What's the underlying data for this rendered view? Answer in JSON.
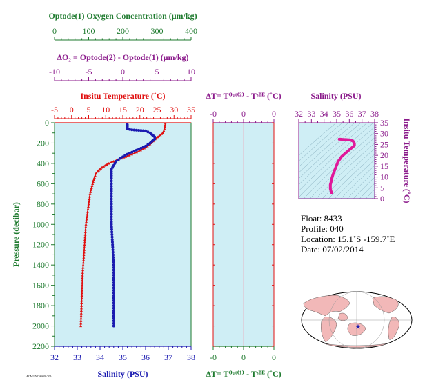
{
  "labels": {
    "oxygen_axis": "Optode(1) Oxygen Concentration (μm/kg)",
    "delta_o2_axis": "ΔO₂ = Optode(2) - Optode(1)    (μm/kg)",
    "temperature_axis": "Insitu Temperature (˚C)",
    "dt_top_axis": "ΔT= Tᴼᵖᵗ⁽²⁾ - Tˢᴮᴱ (˚C)",
    "salinity_inset_axis": "Salinity (PSU)",
    "pressure_axis": "Pressure (decibar)",
    "salinity_bottom_axis": "Salinity (PSU)",
    "dt_bottom_axis": "ΔT= Tᴼᵖᵗ⁽¹⁾ - Tˢᴮᴱ (˚C)",
    "inset_temp_axis": "Insitu Temperature (˚C)",
    "footer_code": "AOML/NOAA 08/2014"
  },
  "info": {
    "float": "Float:  8433",
    "profile": "Profile:  040",
    "location": "Location:  15.1˚S  -159.7˚E",
    "date": "Date:  07/02/2014"
  },
  "colors": {
    "panel_bg": "#cfeef5",
    "oxygen": "#1e7a2e",
    "delta_o2": "#8b1a8b",
    "temperature": "#e01010",
    "salinity": "#1a1ab0",
    "ts_curve": "#e0189a",
    "land": "#f2b8b8"
  },
  "chart_data": [
    {
      "type": "line",
      "name": "profile",
      "y_axis": {
        "label": "Pressure (decibar)",
        "range": [
          2200,
          0
        ],
        "ticks": [
          0,
          200,
          400,
          600,
          800,
          1000,
          1200,
          1400,
          1600,
          1800,
          2000,
          2200
        ]
      },
      "axes": {
        "oxygen": {
          "range": [
            0,
            400
          ],
          "ticks": [
            0,
            100,
            200,
            300,
            400
          ]
        },
        "delta_o2": {
          "range": [
            -10,
            10
          ],
          "ticks": [
            -10,
            -5,
            0,
            5,
            10
          ]
        },
        "temperature": {
          "range": [
            -5,
            35
          ],
          "ticks": [
            -5,
            0,
            5,
            10,
            15,
            20,
            25,
            30,
            35
          ]
        },
        "salinity": {
          "range": [
            32,
            38
          ],
          "ticks": [
            32,
            33,
            34,
            35,
            36,
            37,
            38
          ]
        }
      },
      "series": [
        {
          "axis": "temperature",
          "points": [
            [
              27.4,
              0
            ],
            [
              27.4,
              20
            ],
            [
              27.3,
              40
            ],
            [
              27.2,
              60
            ],
            [
              27.0,
              80
            ],
            [
              26.7,
              100
            ],
            [
              26.0,
              120
            ],
            [
              25.2,
              140
            ],
            [
              24.5,
              160
            ],
            [
              23.9,
              180
            ],
            [
              23.3,
              200
            ],
            [
              22.6,
              220
            ],
            [
              21.8,
              240
            ],
            [
              20.8,
              260
            ],
            [
              19.7,
              280
            ],
            [
              18.4,
              300
            ],
            [
              16.9,
              320
            ],
            [
              15.3,
              340
            ],
            [
              13.8,
              360
            ],
            [
              12.3,
              380
            ],
            [
              10.9,
              400
            ],
            [
              9.8,
              420
            ],
            [
              8.9,
              440
            ],
            [
              8.2,
              460
            ],
            [
              7.6,
              480
            ],
            [
              7.1,
              500
            ],
            [
              6.7,
              540
            ],
            [
              6.3,
              580
            ],
            [
              6.0,
              620
            ],
            [
              5.7,
              660
            ],
            [
              5.4,
              700
            ],
            [
              5.2,
              750
            ],
            [
              5.0,
              800
            ],
            [
              4.8,
              850
            ],
            [
              4.6,
              900
            ],
            [
              4.4,
              950
            ],
            [
              4.2,
              1000
            ],
            [
              4.0,
              1100
            ],
            [
              3.8,
              1200
            ],
            [
              3.6,
              1300
            ],
            [
              3.4,
              1400
            ],
            [
              3.2,
              1500
            ],
            [
              3.1,
              1600
            ],
            [
              3.0,
              1700
            ],
            [
              2.9,
              1800
            ],
            [
              2.8,
              1900
            ],
            [
              2.7,
              2000
            ]
          ]
        },
        {
          "axis": "salinity",
          "points": [
            [
              35.2,
              0
            ],
            [
              35.2,
              40
            ],
            [
              35.2,
              60
            ],
            [
              35.4,
              70
            ],
            [
              35.7,
              75
            ],
            [
              36.0,
              80
            ],
            [
              36.2,
              100
            ],
            [
              36.3,
              120
            ],
            [
              36.4,
              140
            ],
            [
              36.4,
              160
            ],
            [
              36.3,
              180
            ],
            [
              36.2,
              200
            ],
            [
              36.0,
              230
            ],
            [
              35.7,
              260
            ],
            [
              35.4,
              290
            ],
            [
              35.1,
              320
            ],
            [
              34.9,
              350
            ],
            [
              34.7,
              380
            ],
            [
              34.6,
              420
            ],
            [
              34.5,
              460
            ],
            [
              34.5,
              520
            ],
            [
              34.5,
              600
            ],
            [
              34.5,
              800
            ],
            [
              34.5,
              1000
            ],
            [
              34.55,
              1200
            ],
            [
              34.6,
              1400
            ],
            [
              34.6,
              1600
            ],
            [
              34.6,
              1800
            ],
            [
              34.6,
              2000
            ]
          ]
        }
      ]
    },
    {
      "type": "line",
      "name": "delta_t",
      "x_range": [
        -0.5,
        0.5
      ],
      "top_ticks": [
        "-0",
        "0",
        "0"
      ],
      "bottom_ticks": [
        "-0",
        "0",
        "0"
      ],
      "series": []
    },
    {
      "type": "line",
      "name": "ts_diagram",
      "x_axis": {
        "label": "Salinity (PSU)",
        "range": [
          32,
          38
        ],
        "ticks": [
          32,
          33,
          34,
          35,
          36,
          37,
          38
        ]
      },
      "y_axis": {
        "label": "Insitu Temperature (˚C)",
        "range": [
          0,
          35
        ],
        "ticks": [
          0,
          5,
          10,
          15,
          20,
          25,
          30,
          35
        ]
      },
      "series": [
        {
          "points": [
            [
              34.6,
              2.7
            ],
            [
              34.55,
              3.5
            ],
            [
              34.5,
              4.5
            ],
            [
              34.5,
              5.5
            ],
            [
              34.5,
              6.5
            ],
            [
              34.55,
              7.5
            ],
            [
              34.6,
              9
            ],
            [
              34.7,
              11
            ],
            [
              34.9,
              14
            ],
            [
              35.1,
              17
            ],
            [
              35.4,
              19.5
            ],
            [
              35.7,
              21
            ],
            [
              36.0,
              22.5
            ],
            [
              36.2,
              23.5
            ],
            [
              36.4,
              24.5
            ],
            [
              36.4,
              25.5
            ],
            [
              36.3,
              26.5
            ],
            [
              36.1,
              27
            ],
            [
              35.8,
              27.2
            ],
            [
              35.5,
              27.3
            ],
            [
              35.3,
              27.4
            ],
            [
              35.2,
              27.4
            ]
          ]
        }
      ]
    }
  ]
}
